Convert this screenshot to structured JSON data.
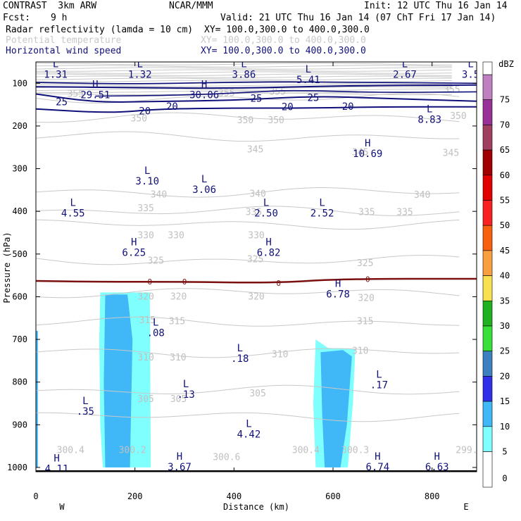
{
  "header": {
    "title": "CONTRAST  3km ARW",
    "source": "NCAR/MMM",
    "init": "Init: 12 UTC Thu 16 Jan 14",
    "fcst_label": "Fcst:",
    "fcst_value": "9 h",
    "valid": "Valid: 21 UTC Thu 16 Jan 14 (07 ChT Fri 17 Jan 14)"
  },
  "fields": [
    {
      "name": "Radar reflectivity (lamda = 10 cm)",
      "xy": "XY= 100.0,300.0 to 400.0,300.0",
      "color": "#000000"
    },
    {
      "name": "Potential temperature",
      "xy": "XY= 100.0,300.0 to 400.0,300.0",
      "color": "#c8c8c8"
    },
    {
      "name": "Horizontal wind speed",
      "xy": "XY= 100.0,300.0 to 400.0,300.0",
      "color": "#10107a"
    }
  ],
  "chart_data": {
    "type": "cross-section",
    "xlabel": "Distance (km)",
    "ylabel": "Pressure (hPa)",
    "x_range": [
      0,
      890
    ],
    "y_range": [
      50,
      1010
    ],
    "x_ticks": [
      0,
      200,
      400,
      600,
      800
    ],
    "y_ticks": [
      100,
      200,
      300,
      400,
      500,
      600,
      700,
      800,
      900,
      1000
    ],
    "side_left": "W",
    "side_right": "E",
    "colorbar": {
      "unit": "dBZ",
      "levels": [
        0,
        5,
        10,
        15,
        20,
        25,
        30,
        35,
        40,
        45,
        50,
        55,
        60,
        65,
        70,
        75
      ],
      "colors": [
        "#ffffff",
        "#80ffff",
        "#40b8f8",
        "#3030e8",
        "#3c80c0",
        "#38e038",
        "#20b020",
        "#f8e050",
        "#f8a040",
        "#f86010",
        "#f82020",
        "#e00000",
        "#a00000",
        "#a04060",
        "#983098",
        "#c080c0"
      ]
    },
    "theta_contours": [
      {
        "label": "355",
        "p": 135
      },
      {
        "label": "350",
        "p": 180
      },
      {
        "label": "345",
        "p": 225
      },
      {
        "label": "340",
        "p": 355
      },
      {
        "label": "335",
        "p": 400
      },
      {
        "label": "330",
        "p": 430
      },
      {
        "label": "325",
        "p": 515
      },
      {
        "label": "320",
        "p": 590
      },
      {
        "label": "315",
        "p": 660
      },
      {
        "label": "310",
        "p": 730
      },
      {
        "label": "305",
        "p": 820
      },
      {
        "label": "300",
        "p": 880
      }
    ],
    "theta_labels": [
      {
        "text": "355",
        "x": 80,
        "p": 125
      },
      {
        "text": "355",
        "x": 385,
        "p": 123
      },
      {
        "text": "355",
        "x": 488,
        "p": 120
      },
      {
        "text": "355",
        "x": 840,
        "p": 115
      },
      {
        "text": "350",
        "x": 208,
        "p": 183
      },
      {
        "text": "350",
        "x": 423,
        "p": 187
      },
      {
        "text": "350",
        "x": 485,
        "p": 187
      },
      {
        "text": "350",
        "x": 853,
        "p": 177
      },
      {
        "text": "345",
        "x": 443,
        "p": 255
      },
      {
        "text": "345",
        "x": 655,
        "p": 262
      },
      {
        "text": "345",
        "x": 838,
        "p": 264
      },
      {
        "text": "340",
        "x": 248,
        "p": 361
      },
      {
        "text": "340",
        "x": 448,
        "p": 359
      },
      {
        "text": "340",
        "x": 780,
        "p": 362
      },
      {
        "text": "335",
        "x": 222,
        "p": 393
      },
      {
        "text": "335",
        "x": 440,
        "p": 402
      },
      {
        "text": "335",
        "x": 668,
        "p": 402
      },
      {
        "text": "335",
        "x": 745,
        "p": 402
      },
      {
        "text": "330",
        "x": 222,
        "p": 457
      },
      {
        "text": "330",
        "x": 283,
        "p": 457
      },
      {
        "text": "330",
        "x": 445,
        "p": 457
      },
      {
        "text": "325",
        "x": 242,
        "p": 516
      },
      {
        "text": "325",
        "x": 443,
        "p": 513
      },
      {
        "text": "325",
        "x": 665,
        "p": 522
      },
      {
        "text": "320",
        "x": 222,
        "p": 600
      },
      {
        "text": "320",
        "x": 288,
        "p": 600
      },
      {
        "text": "320",
        "x": 445,
        "p": 600
      },
      {
        "text": "320",
        "x": 667,
        "p": 603
      },
      {
        "text": "315",
        "x": 225,
        "p": 655
      },
      {
        "text": "315",
        "x": 285,
        "p": 658
      },
      {
        "text": "315",
        "x": 665,
        "p": 658
      },
      {
        "text": "310",
        "x": 222,
        "p": 743
      },
      {
        "text": "310",
        "x": 287,
        "p": 743
      },
      {
        "text": "310",
        "x": 493,
        "p": 735
      },
      {
        "text": "310",
        "x": 655,
        "p": 727
      },
      {
        "text": "305",
        "x": 222,
        "p": 840
      },
      {
        "text": "305",
        "x": 288,
        "p": 840
      },
      {
        "text": "305",
        "x": 448,
        "p": 827
      },
      {
        "text": "300.4",
        "x": 70,
        "p": 960
      },
      {
        "text": "300.2",
        "x": 195,
        "p": 960
      },
      {
        "text": "300.6",
        "x": 385,
        "p": 976
      },
      {
        "text": "300.4",
        "x": 545,
        "p": 960
      },
      {
        "text": "300.3",
        "x": 645,
        "p": 960
      },
      {
        "text": "299.",
        "x": 870,
        "p": 960
      }
    ],
    "wind_contours": [
      {
        "label": "25",
        "points": [
          [
            0,
            125
          ],
          [
            120,
            145
          ],
          [
            250,
            142
          ],
          [
            400,
            140
          ],
          [
            560,
            130
          ],
          [
            700,
            135
          ],
          [
            890,
            142
          ]
        ]
      },
      {
        "label": "20",
        "points": [
          [
            0,
            160
          ],
          [
            150,
            170
          ],
          [
            250,
            160
          ],
          [
            400,
            158
          ],
          [
            560,
            158
          ],
          [
            700,
            155
          ],
          [
            890,
            155
          ]
        ]
      }
    ],
    "wind_labels": [
      {
        "text": "25",
        "x": 52,
        "p": 143
      },
      {
        "text": "25",
        "x": 445,
        "p": 135
      },
      {
        "text": "25",
        "x": 560,
        "p": 133
      },
      {
        "text": "20",
        "x": 220,
        "p": 165
      },
      {
        "text": "20",
        "x": 275,
        "p": 154
      },
      {
        "text": "20",
        "x": 508,
        "p": 155
      },
      {
        "text": "20",
        "x": 630,
        "p": 154
      }
    ],
    "freezing_level": {
      "label": "0",
      "points": [
        [
          0,
          563
        ],
        [
          120,
          565
        ],
        [
          300,
          565
        ],
        [
          480,
          568
        ],
        [
          620,
          558
        ],
        [
          890,
          558
        ]
      ]
    },
    "extrema": [
      {
        "type": "L",
        "value": "1.31",
        "x": 40,
        "p": 62
      },
      {
        "type": "L",
        "value": "1.32",
        "x": 210,
        "p": 62
      },
      {
        "type": "L",
        "value": "3.86",
        "x": 420,
        "p": 62
      },
      {
        "type": "L",
        "value": "5.41",
        "x": 550,
        "p": 75
      },
      {
        "type": "L",
        "value": "2.67",
        "x": 745,
        "p": 62
      },
      {
        "type": "L",
        "value": "3.5",
        "x": 878,
        "p": 62
      },
      {
        "type": "H",
        "value": "29.51",
        "x": 120,
        "p": 110
      },
      {
        "type": "H",
        "value": "30.06",
        "x": 340,
        "p": 110
      },
      {
        "type": "L",
        "value": "8.83",
        "x": 795,
        "p": 168
      },
      {
        "type": "H",
        "value": "10.69",
        "x": 670,
        "p": 248
      },
      {
        "type": "L",
        "value": "3.10",
        "x": 225,
        "p": 312
      },
      {
        "type": "L",
        "value": "3.06",
        "x": 340,
        "p": 332
      },
      {
        "type": "L",
        "value": "4.55",
        "x": 75,
        "p": 387
      },
      {
        "type": "L",
        "value": "2.50",
        "x": 465,
        "p": 387
      },
      {
        "type": "L",
        "value": "2.52",
        "x": 578,
        "p": 387
      },
      {
        "type": "H",
        "value": "6.25",
        "x": 198,
        "p": 480
      },
      {
        "type": "H",
        "value": "6.82",
        "x": 470,
        "p": 480
      },
      {
        "type": "H",
        "value": "6.78",
        "x": 610,
        "p": 577
      },
      {
        "type": "L",
        "value": ".08",
        "x": 242,
        "p": 668
      },
      {
        "type": "L",
        "value": ".18",
        "x": 412,
        "p": 728
      },
      {
        "type": "L",
        "value": ".17",
        "x": 693,
        "p": 790
      },
      {
        "type": "L",
        "value": ".13",
        "x": 303,
        "p": 812
      },
      {
        "type": "L",
        "value": ".35",
        "x": 100,
        "p": 852
      },
      {
        "type": "L",
        "value": "4.42",
        "x": 430,
        "p": 905
      },
      {
        "type": "H",
        "value": "4.11",
        "x": 42,
        "p": 986
      },
      {
        "type": "H",
        "value": "3.67",
        "x": 290,
        "p": 982
      },
      {
        "type": "H",
        "value": "6.74",
        "x": 690,
        "p": 982
      },
      {
        "type": "H",
        "value": "6.63",
        "x": 810,
        "p": 982
      }
    ],
    "reflectivity_cells": [
      {
        "level": 5,
        "points": [
          [
            130,
            590
          ],
          [
            230,
            590
          ],
          [
            232,
            1000
          ],
          [
            135,
            1000
          ],
          [
            130,
            900
          ],
          [
            128,
            700
          ]
        ]
      },
      {
        "level": 10,
        "points": [
          [
            140,
            595
          ],
          [
            185,
            595
          ],
          [
            195,
            700
          ],
          [
            190,
            1000
          ],
          [
            140,
            1000
          ],
          [
            137,
            800
          ]
        ]
      },
      {
        "level": 5,
        "points": [
          [
            565,
            700
          ],
          [
            590,
            720
          ],
          [
            645,
            722
          ],
          [
            640,
            850
          ],
          [
            630,
            1000
          ],
          [
            565,
            1000
          ],
          [
            560,
            850
          ]
        ]
      },
      {
        "level": 10,
        "points": [
          [
            575,
            730
          ],
          [
            620,
            725
          ],
          [
            638,
            740
          ],
          [
            628,
            900
          ],
          [
            615,
            1000
          ],
          [
            583,
            1000
          ],
          [
            578,
            870
          ]
        ]
      },
      {
        "level": 10,
        "points": [
          [
            0,
            680
          ],
          [
            4,
            680
          ],
          [
            4,
            1000
          ],
          [
            0,
            1000
          ]
        ]
      }
    ]
  }
}
